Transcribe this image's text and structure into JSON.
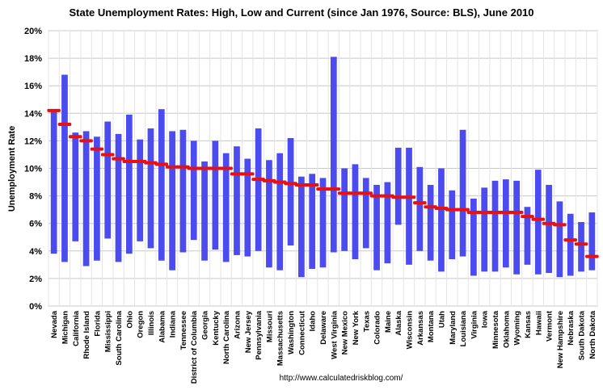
{
  "chart_data": {
    "type": "bar",
    "title": "State Unemployment Rates: High, Low and Current (since Jan 1976, Source: BLS), June 2010",
    "ylabel": "Unemployment Rate",
    "xlabel": "",
    "ylim": [
      0,
      20
    ],
    "yticks": [
      "0%",
      "2%",
      "4%",
      "6%",
      "8%",
      "10%",
      "12%",
      "14%",
      "16%",
      "18%",
      "20%"
    ],
    "grid": true,
    "source": "http://www.calculatedriskblog.com/",
    "colors": {
      "range_bar": "#4b4bf0",
      "current_marker": "#e81010",
      "plot_bg": "#ffffff",
      "outer_bg": "#ffffff",
      "grid": "#c8c8c8"
    },
    "categories": [
      "Nevada",
      "Michigan",
      "California",
      "Rhode Island",
      "Florida",
      "Mississippi",
      "South Carolina",
      "Ohio",
      "Oregon",
      "Illinois",
      "Alabama",
      "Indiana",
      "Tennessee",
      "District of Columbia",
      "Georgia",
      "Kentucky",
      "North Carolina",
      "Arizona",
      "New Jersey",
      "Pennsylvania",
      "Missouri",
      "Massachusetts",
      "Washington",
      "Connecticut",
      "Idaho",
      "Delaware",
      "West Virginia",
      "New Mexico",
      "New York",
      "Texas",
      "Colorado",
      "Maine",
      "Alaska",
      "Wisconsin",
      "Arkansas",
      "Montana",
      "Utah",
      "Maryland",
      "Louisiana",
      "Virginia",
      "Iowa",
      "Minnesota",
      "Oklahoma",
      "Wyoming",
      "Kansas",
      "Hawaii",
      "Vermont",
      "New Hampshire",
      "Nebraska",
      "South Dakota",
      "North Dakota"
    ],
    "series": [
      {
        "name": "High",
        "values": [
          14.2,
          16.8,
          12.6,
          12.7,
          12.3,
          13.4,
          12.5,
          13.9,
          12.1,
          12.9,
          14.3,
          12.7,
          12.8,
          12.0,
          10.5,
          12.0,
          11.1,
          11.6,
          10.7,
          12.9,
          10.6,
          11.1,
          12.2,
          9.4,
          9.6,
          9.3,
          18.1,
          10.0,
          10.3,
          9.3,
          8.8,
          9.0,
          11.5,
          11.5,
          10.1,
          8.8,
          10.0,
          8.4,
          12.8,
          7.8,
          8.6,
          9.1,
          9.2,
          9.1,
          7.2,
          9.9,
          8.8,
          7.6,
          6.7,
          6.1,
          6.8
        ]
      },
      {
        "name": "Low",
        "values": [
          3.8,
          3.2,
          4.7,
          2.9,
          3.3,
          4.9,
          3.2,
          3.8,
          4.7,
          4.2,
          3.3,
          2.6,
          3.9,
          4.8,
          3.3,
          4.1,
          3.2,
          3.7,
          3.6,
          4.0,
          2.8,
          2.6,
          4.4,
          2.1,
          2.7,
          2.8,
          3.9,
          4.0,
          3.4,
          4.2,
          2.6,
          3.1,
          5.9,
          3.0,
          4.0,
          3.3,
          2.5,
          3.4,
          3.6,
          2.2,
          2.5,
          2.5,
          2.8,
          2.3,
          3.0,
          2.3,
          2.4,
          2.1,
          2.2,
          2.5,
          2.6
        ]
      },
      {
        "name": "Current",
        "values": [
          14.2,
          13.2,
          12.3,
          12.0,
          11.4,
          11.0,
          10.7,
          10.5,
          10.5,
          10.4,
          10.3,
          10.1,
          10.1,
          10.0,
          10.0,
          10.0,
          10.0,
          9.6,
          9.6,
          9.2,
          9.1,
          9.0,
          8.9,
          8.8,
          8.8,
          8.5,
          8.5,
          8.2,
          8.2,
          8.2,
          8.0,
          8.0,
          7.9,
          7.9,
          7.5,
          7.2,
          7.1,
          7.0,
          7.0,
          6.8,
          6.8,
          6.8,
          6.8,
          6.8,
          6.5,
          6.3,
          6.0,
          5.9,
          4.8,
          4.5,
          3.6
        ]
      }
    ]
  }
}
